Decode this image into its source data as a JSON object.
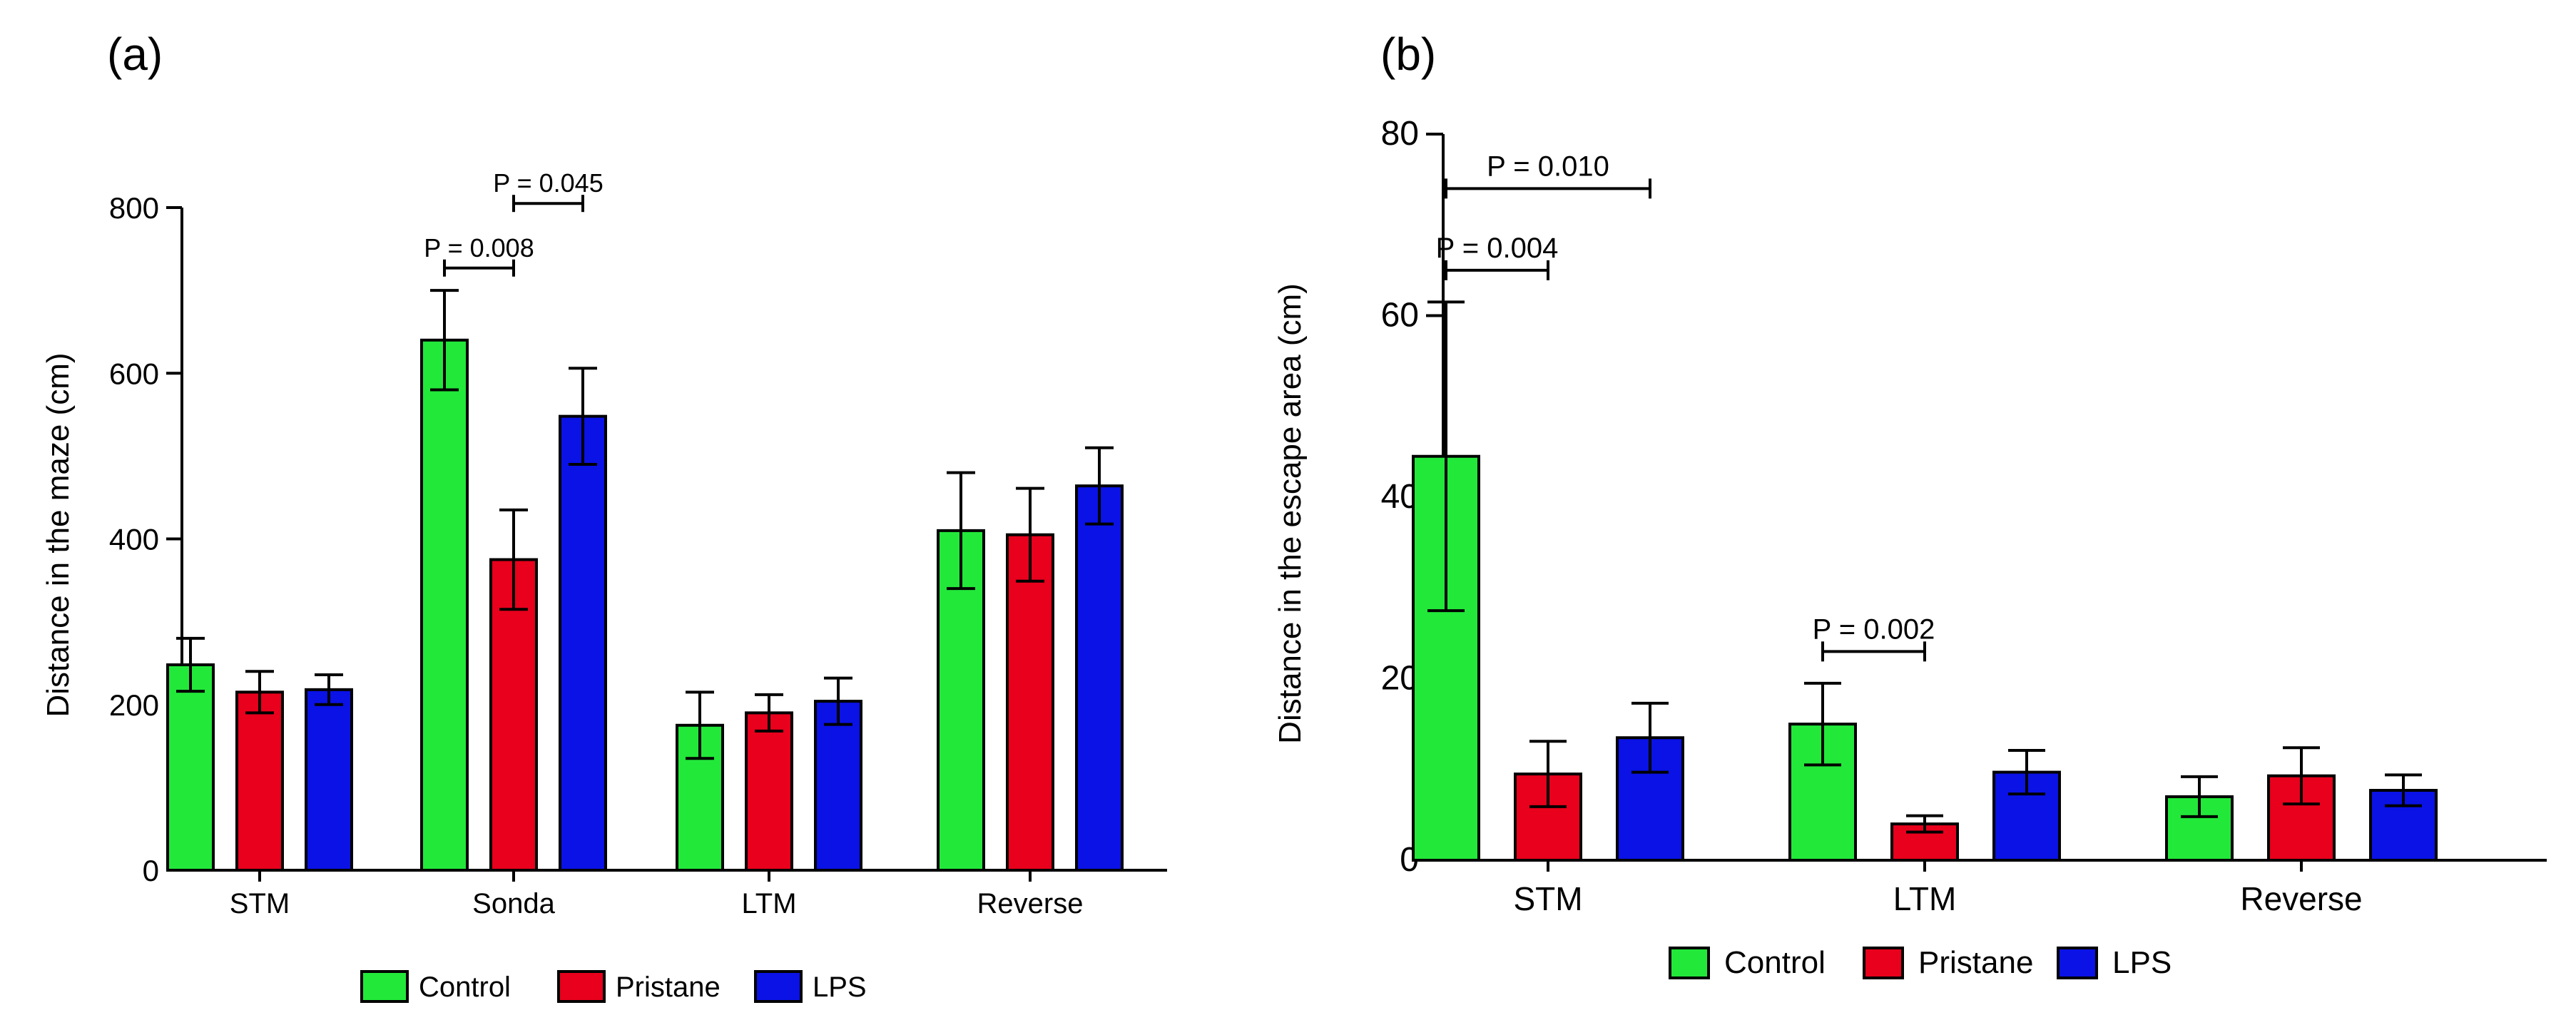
{
  "chart_data": [
    {
      "type": "bar",
      "panel_label": "(a)",
      "title": "",
      "xlabel": "",
      "ylabel": "Distance in the maze (cm)",
      "ylim": [
        0,
        800
      ],
      "yticks": [
        "0",
        "200",
        "400",
        "600",
        "800"
      ],
      "categories": [
        "STM",
        "Sonda",
        "LTM",
        "Reverse"
      ],
      "series": [
        {
          "name": "Control",
          "color": "#22e83a",
          "values": [
            248,
            640,
            175,
            410
          ],
          "errors": [
            32,
            60,
            40,
            70
          ]
        },
        {
          "name": "Pristane",
          "color": "#e8001c",
          "values": [
            215,
            375,
            190,
            405
          ],
          "errors": [
            25,
            60,
            22,
            56
          ]
        },
        {
          "name": "LPS",
          "color": "#0a12e6",
          "values": [
            218,
            548,
            204,
            464
          ],
          "errors": [
            18,
            58,
            28,
            46
          ]
        }
      ],
      "annotations": [
        {
          "text": "P = 0.008",
          "category": "Sonda",
          "from_series": 0,
          "to_series": 1,
          "y": 727
        },
        {
          "text": "P = 0.045",
          "category": "Sonda",
          "from_series": 1,
          "to_series": 2,
          "y": 805
        }
      ],
      "legend": "bottom"
    },
    {
      "type": "bar",
      "panel_label": "(b)",
      "title": "",
      "xlabel": "",
      "ylabel": "Distance in the escape area (cm)",
      "ylim": [
        0,
        80
      ],
      "yticks": [
        "0",
        "20",
        "40",
        "60",
        "80"
      ],
      "categories": [
        "STM",
        "LTM",
        "Reverse"
      ],
      "series": [
        {
          "name": "Control",
          "color": "#22e83a",
          "values": [
            44.5,
            15.0,
            7.0
          ],
          "errors": [
            17.0,
            4.5,
            2.2
          ]
        },
        {
          "name": "Pristane",
          "color": "#e8001c",
          "values": [
            9.5,
            4.0,
            9.3
          ],
          "errors": [
            3.6,
            0.9,
            3.1
          ]
        },
        {
          "name": "LPS",
          "color": "#0a12e6",
          "values": [
            13.5,
            9.7,
            7.7
          ],
          "errors": [
            3.8,
            2.4,
            1.7
          ]
        }
      ],
      "annotations": [
        {
          "text": "P = 0.004",
          "category": "STM",
          "from_series": 0,
          "to_series": 1,
          "y": 65
        },
        {
          "text": "P = 0.010",
          "category": "STM",
          "from_series": 0,
          "to_series": 2,
          "y": 74
        },
        {
          "text": "P = 0.002",
          "category": "LTM",
          "from_series": 0,
          "to_series": 1,
          "y": 23
        }
      ],
      "legend": "bottom"
    }
  ]
}
